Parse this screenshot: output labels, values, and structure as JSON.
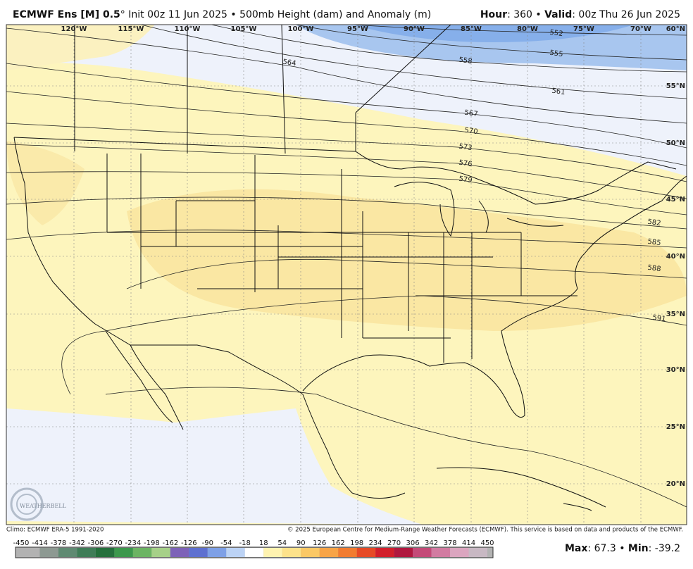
{
  "header": {
    "left": [
      {
        "text": "ECMWF Ens [M] 0.5",
        "bold": true
      },
      {
        "text": "°",
        "bold": false
      },
      {
        "text": " Init 00z 11 Jun 2025 • 500mb Height (dam) and Anomaly (m)",
        "bold": false
      }
    ],
    "right": [
      {
        "text": "Hour",
        "bold": true
      },
      {
        "text": ": 360 • ",
        "bold": false
      },
      {
        "text": "Valid",
        "bold": true
      },
      {
        "text": ": 00z Thu 26 Jun 2025",
        "bold": false
      }
    ]
  },
  "map": {
    "longitude_labels": [
      "120°W",
      "115°W",
      "110°W",
      "105°W",
      "100°W",
      "95°W",
      "90°W",
      "85°W",
      "80°W",
      "75°W",
      "70°W"
    ],
    "latitude_labels": [
      "60°N",
      "55°N",
      "50°N",
      "45°N",
      "40°N",
      "35°N",
      "30°N",
      "25°N",
      "20°N"
    ],
    "contour_labels": [
      "552",
      "555",
      "558",
      "561",
      "564",
      "567",
      "570",
      "573",
      "576",
      "579",
      "582",
      "585",
      "588",
      "591"
    ],
    "logo": "WEATHERBELL"
  },
  "footer": {
    "climo": "Climo: ECMWF ERA-5 1991-2020",
    "copyright": "© 2025 European Centre for Medium-Range Weather Forecasts (ECMWF). This service is based on data and products of the ECMWF."
  },
  "colorbar": {
    "labels": [
      "-450",
      "-414",
      "-378",
      "-342",
      "-306",
      "-270",
      "-234",
      "-198",
      "-162",
      "-126",
      "-90",
      "-54",
      "-18",
      "18",
      "54",
      "90",
      "126",
      "162",
      "198",
      "234",
      "270",
      "306",
      "342",
      "378",
      "414",
      "450"
    ],
    "colors": [
      "#b2b2b2",
      "#8d9992",
      "#5f8a72",
      "#3f7d57",
      "#25703c",
      "#3c984c",
      "#6cb463",
      "#a6d088",
      "#7d62b8",
      "#5e70d0",
      "#7ea0e6",
      "#bcd3f5",
      "#ffffff",
      "#fff3b0",
      "#fde28a",
      "#fbc865",
      "#f8a446",
      "#f27c30",
      "#e64a26",
      "#d21f2b",
      "#b0183f",
      "#c44a78",
      "#d27ba1",
      "#dba5bf",
      "#c8b8c3"
    ]
  },
  "stats": [
    {
      "text": "Max",
      "bold": true
    },
    {
      "text": ": 67.3 • ",
      "bold": false
    },
    {
      "text": "Min",
      "bold": true
    },
    {
      "text": ": -39.2",
      "bold": false
    }
  ]
}
